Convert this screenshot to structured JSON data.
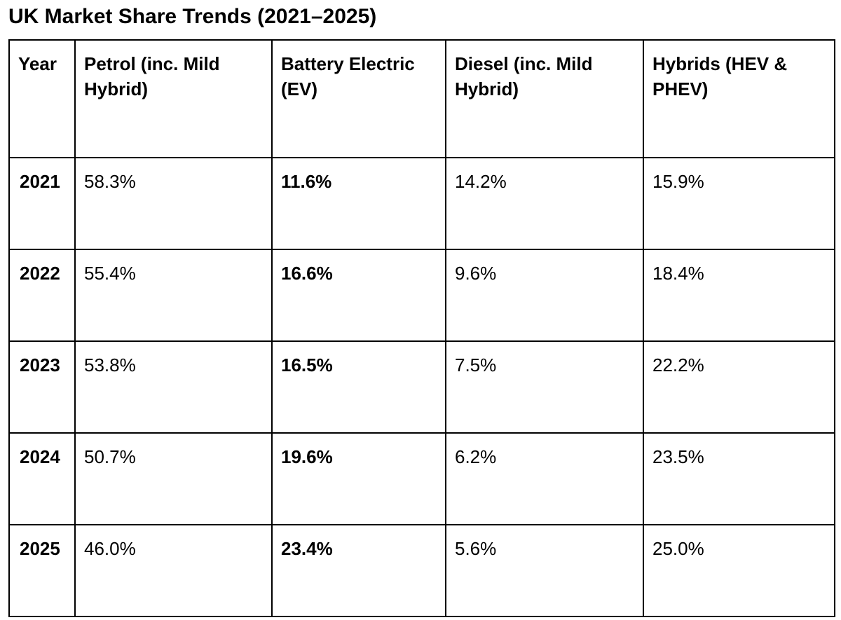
{
  "title": "UK Market Share Trends (2021–2025)",
  "table": {
    "headers": [
      "Year",
      "Petrol (inc. Mild Hybrid)",
      "Battery Electric (EV)",
      "Diesel (inc. Mild Hybrid)",
      "Hybrids (HEV & PHEV)"
    ],
    "rows": [
      [
        "2021",
        "58.3%",
        "11.6%",
        "14.2%",
        "15.9%"
      ],
      [
        "2022",
        "55.4%",
        "16.6%",
        "9.6%",
        "18.4%"
      ],
      [
        "2023",
        "53.8%",
        "16.5%",
        "7.5%",
        "22.2%"
      ],
      [
        "2024",
        "50.7%",
        "19.6%",
        "6.2%",
        "23.5%"
      ],
      [
        "2025",
        "46.0%",
        "23.4%",
        "5.6%",
        "25.0%"
      ]
    ]
  }
}
